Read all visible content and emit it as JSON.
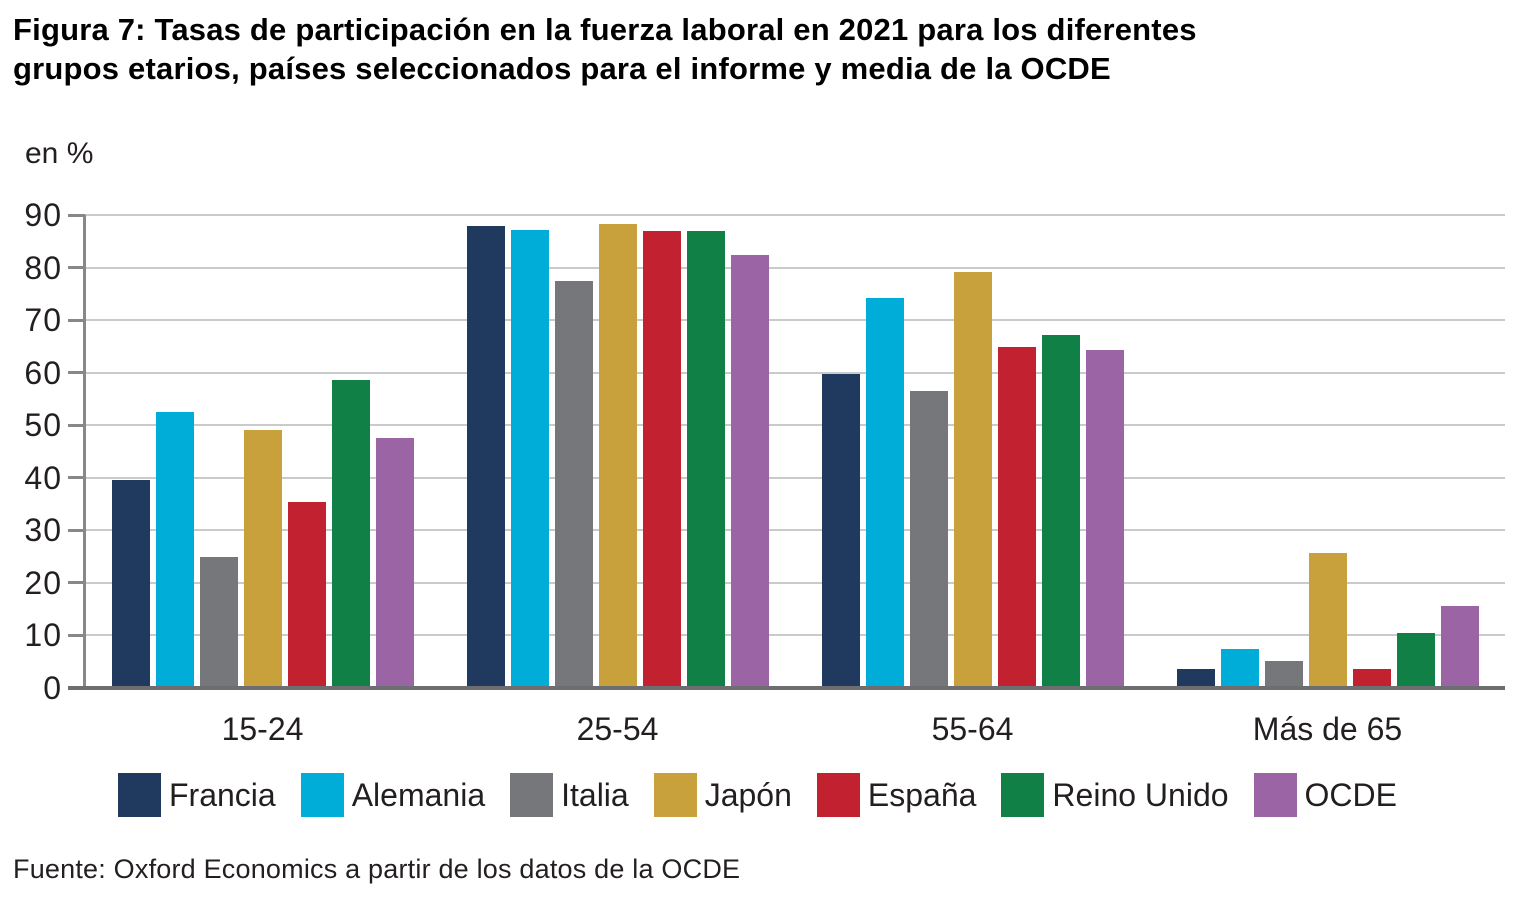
{
  "title": "Figura 7: Tasas de participación en la fuerza laboral en 2021 para los diferentes\ngrupos etarios, países seleccionados para el informe y media de la OCDE",
  "source": "Fuente: Oxford Economics a partir de los datos de la OCDE",
  "chart_data": {
    "type": "bar",
    "title": "Figura 7: Tasas de participación en la fuerza laboral en 2021 para los diferentes grupos etarios, países seleccionados para el informe y media de la OCDE",
    "ylabel": "en %",
    "xlabel": "",
    "ylim": [
      0,
      90
    ],
    "yticks": [
      0,
      10,
      20,
      30,
      40,
      50,
      60,
      70,
      80,
      90
    ],
    "grid": true,
    "legend_position": "bottom",
    "categories": [
      "15-24",
      "25-54",
      "55-64",
      "Más de 65"
    ],
    "series": [
      {
        "name": "Francia",
        "color": "#1F3A5E",
        "values": [
          39.6,
          88.0,
          59.7,
          3.6
        ]
      },
      {
        "name": "Alemania",
        "color": "#00ACD8",
        "values": [
          52.5,
          87.2,
          74.3,
          7.5
        ]
      },
      {
        "name": "Italia",
        "color": "#76777A",
        "values": [
          25.0,
          77.4,
          56.6,
          5.2
        ]
      },
      {
        "name": "Japón",
        "color": "#C9A13C",
        "values": [
          49.0,
          88.2,
          79.1,
          25.6
        ]
      },
      {
        "name": "España",
        "color": "#C2212F",
        "values": [
          35.3,
          87.0,
          64.8,
          3.6
        ]
      },
      {
        "name": "Reino Unido",
        "color": "#108046",
        "values": [
          58.7,
          86.9,
          67.2,
          10.5
        ]
      },
      {
        "name": "OCDE",
        "color": "#9B64A5",
        "values": [
          47.5,
          82.3,
          64.4,
          15.6
        ]
      }
    ],
    "colors": {
      "gridline": "#C9CACB",
      "axis": "#87888A",
      "baseline": "#6D6E71",
      "text": "#231F20",
      "title": "#000000"
    }
  }
}
